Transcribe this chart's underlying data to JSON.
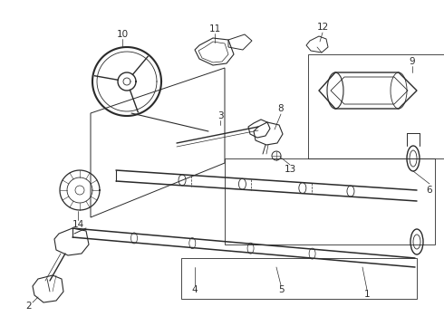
{
  "bg_color": "#ffffff",
  "line_color": "#2a2a2a",
  "fig_width": 4.9,
  "fig_height": 3.6,
  "dpi": 100,
  "lw": 0.9
}
